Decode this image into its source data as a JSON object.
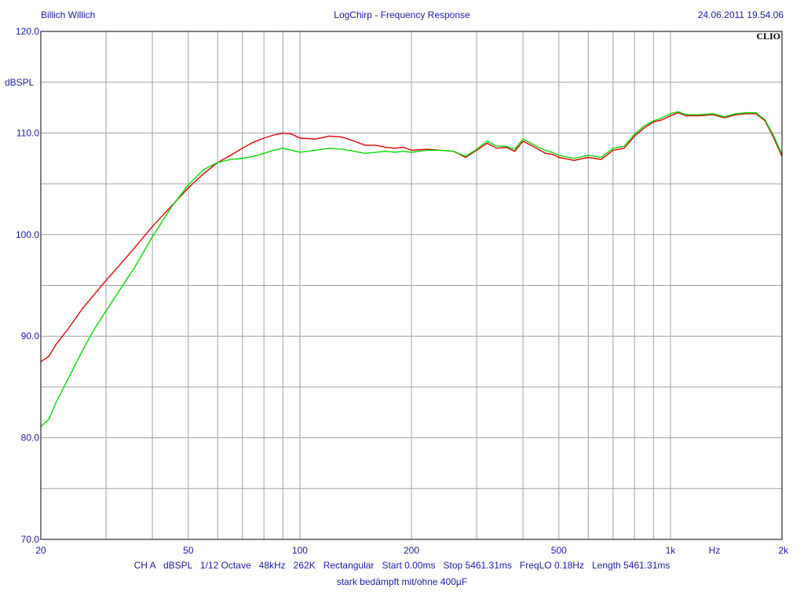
{
  "header": {
    "author": "Billich Willich",
    "title": "LogChirp - Frequency Response",
    "timestamp": "24.06.2011 19.54.06",
    "brand": "CLIO"
  },
  "footer": {
    "params": [
      "CH A",
      "dBSPL",
      "1/12 Octave",
      "48kHz",
      "262K",
      "Rectangular",
      "Start 0.00ms",
      "Stop 5461.31ms",
      "FreqLO 0.18Hz",
      "Length 5461.31ms"
    ],
    "caption": "stark bedämpft mit/ohne 400µF"
  },
  "colors": {
    "background": "#ffffff",
    "frame": "#000000",
    "grid": "#a0a0a0",
    "text": "#1a1aa6",
    "series_red": "#e00000",
    "series_green": "#00dd00"
  },
  "chart_data": {
    "type": "line",
    "title": "LogChirp - Frequency Response",
    "xlabel": "Hz",
    "ylabel": "dBSPL",
    "x_scale": "log",
    "xlim": [
      20,
      2000
    ],
    "ylim": [
      70,
      120
    ],
    "grid": true,
    "x_ticks": [
      20,
      50,
      100,
      200,
      500,
      1000,
      2000
    ],
    "x_tick_labels": [
      "20",
      "50",
      "100",
      "200",
      "500",
      "1k",
      "2k"
    ],
    "y_ticks": [
      70,
      80,
      90,
      100,
      110,
      120
    ],
    "y_tick_labels": [
      "70.0",
      "80.0",
      "90.0",
      "100.0",
      "110.0",
      "120.0"
    ],
    "series": [
      {
        "color": "#e00000",
        "x": [
          20,
          21,
          22,
          24,
          26,
          28,
          30,
          33,
          36,
          40,
          45,
          50,
          55,
          60,
          65,
          70,
          75,
          80,
          85,
          90,
          95,
          100,
          110,
          120,
          130,
          140,
          150,
          160,
          170,
          180,
          190,
          200,
          220,
          240,
          260,
          280,
          300,
          320,
          340,
          360,
          380,
          400,
          420,
          440,
          460,
          480,
          500,
          550,
          600,
          650,
          700,
          750,
          800,
          850,
          900,
          950,
          1000,
          1050,
          1100,
          1200,
          1300,
          1400,
          1500,
          1600,
          1700,
          1800,
          1900,
          2000
        ],
        "y": [
          87.5,
          88.0,
          89.2,
          91.0,
          92.8,
          94.2,
          95.5,
          97.2,
          98.8,
          100.8,
          102.8,
          104.6,
          106.0,
          107.1,
          107.8,
          108.5,
          109.1,
          109.5,
          109.8,
          110.0,
          109.9,
          109.5,
          109.4,
          109.7,
          109.6,
          109.2,
          108.8,
          108.8,
          108.6,
          108.5,
          108.6,
          108.3,
          108.4,
          108.3,
          108.2,
          107.6,
          108.3,
          109.0,
          108.5,
          108.6,
          108.2,
          109.2,
          108.8,
          108.4,
          108.0,
          107.9,
          107.6,
          107.3,
          107.6,
          107.4,
          108.3,
          108.5,
          109.7,
          110.5,
          111.1,
          111.3,
          111.7,
          112.0,
          111.7,
          111.7,
          111.8,
          111.5,
          111.8,
          111.9,
          111.9,
          111.2,
          109.5,
          107.7
        ]
      },
      {
        "color": "#00dd00",
        "x": [
          20,
          21,
          22,
          24,
          26,
          28,
          30,
          33,
          36,
          40,
          45,
          50,
          55,
          60,
          65,
          70,
          75,
          80,
          85,
          90,
          95,
          100,
          110,
          120,
          130,
          140,
          150,
          160,
          170,
          180,
          190,
          200,
          220,
          240,
          260,
          280,
          300,
          320,
          340,
          360,
          380,
          400,
          420,
          440,
          460,
          480,
          500,
          550,
          600,
          650,
          700,
          750,
          800,
          850,
          900,
          950,
          1000,
          1050,
          1100,
          1200,
          1300,
          1400,
          1500,
          1600,
          1700,
          1800,
          1900,
          2000
        ],
        "y": [
          81.1,
          81.8,
          83.5,
          86.2,
          88.7,
          90.8,
          92.5,
          94.8,
          96.9,
          99.8,
          102.7,
          104.9,
          106.4,
          107.1,
          107.4,
          107.5,
          107.7,
          108.0,
          108.3,
          108.5,
          108.3,
          108.1,
          108.3,
          108.5,
          108.4,
          108.2,
          108.0,
          108.1,
          108.2,
          108.1,
          108.2,
          108.1,
          108.3,
          108.3,
          108.2,
          107.7,
          108.4,
          109.2,
          108.7,
          108.7,
          108.4,
          109.4,
          109.0,
          108.6,
          108.3,
          108.1,
          107.8,
          107.5,
          107.8,
          107.6,
          108.5,
          108.7,
          109.9,
          110.7,
          111.2,
          111.5,
          111.9,
          112.1,
          111.8,
          111.8,
          111.9,
          111.6,
          111.9,
          112.0,
          112.0,
          111.3,
          109.7,
          107.9
        ]
      }
    ]
  }
}
